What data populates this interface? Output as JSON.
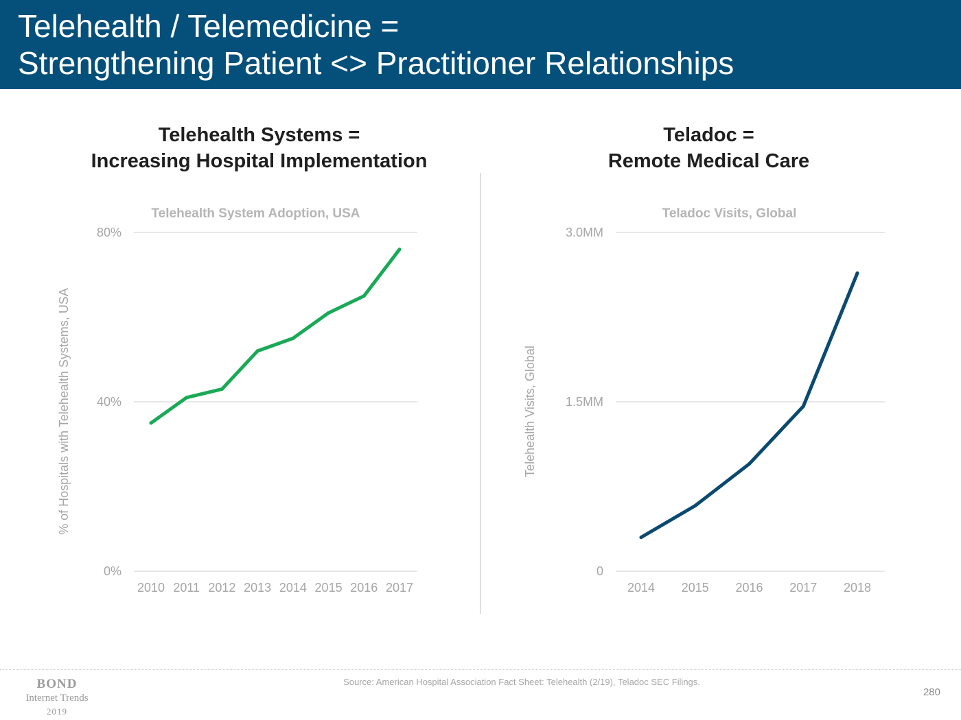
{
  "header": {
    "line1": "Telehealth / Telemedicine =",
    "line2": "Strengthening Patient <> Practitioner Relationships"
  },
  "left_panel": {
    "title_line1": "Telehealth Systems =",
    "title_line2": "Increasing Hospital Implementation"
  },
  "right_panel": {
    "title_line1": "Teladoc =",
    "title_line2": "Remote Medical Care"
  },
  "chart_data": [
    {
      "type": "line",
      "title": "Telehealth System Adoption, USA",
      "xlabel": "",
      "ylabel": "% of Hospitals with Telehealth Systems, USA",
      "x": [
        "2010",
        "2011",
        "2012",
        "2013",
        "2014",
        "2015",
        "2016",
        "2017"
      ],
      "series": [
        {
          "values": [
            35,
            41,
            43,
            52,
            55,
            61,
            65,
            76
          ]
        }
      ],
      "ylim": [
        0,
        80
      ],
      "yticks": [
        0,
        40,
        80
      ],
      "ytick_labels": [
        "0%",
        "40%",
        "80%"
      ],
      "color": "#1aa957",
      "grid": true
    },
    {
      "type": "line",
      "title": "Teladoc Visits, Global",
      "xlabel": "",
      "ylabel": "Telehealth Visits, Global",
      "x": [
        "2014",
        "2015",
        "2016",
        "2017",
        "2018"
      ],
      "series": [
        {
          "values": [
            0.3,
            0.58,
            0.95,
            1.46,
            2.64
          ]
        }
      ],
      "ylim": [
        0,
        3.0
      ],
      "yticks": [
        0,
        1.5,
        3.0
      ],
      "ytick_labels": [
        "0",
        "1.5MM",
        "3.0MM"
      ],
      "color": "#0b4a6f",
      "grid": true
    }
  ],
  "footer": {
    "brand": "BOND",
    "brand_line2": "Internet Trends",
    "brand_line3": "2019",
    "source": "Source: American Hospital Association Fact Sheet: Telehealth (2/19), Teladoc SEC Filings.",
    "page_number": "280"
  }
}
